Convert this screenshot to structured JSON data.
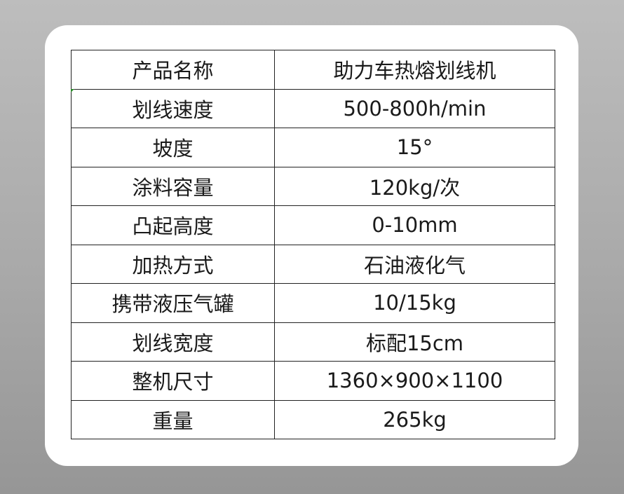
{
  "rows": [
    {
      "label": "产品名称",
      "value": "助力车热熔划线机"
    },
    {
      "label": "划线速度",
      "value": "500-800h/min"
    },
    {
      "label": "坡度",
      "value": "15°"
    },
    {
      "label": "涂料容量",
      "value": "120kg/次"
    },
    {
      "label": "凸起高度",
      "value": "0-10mm"
    },
    {
      "label": "加热方式",
      "value": "石油液化气"
    },
    {
      "label": "携带液压气罐",
      "value": "10/15kg"
    },
    {
      "label": "划线宽度",
      "value": "标配15cm"
    },
    {
      "label": "整机尺寸",
      "value": "1360×900×1100"
    },
    {
      "label": "重量",
      "value": "265kg"
    }
  ]
}
